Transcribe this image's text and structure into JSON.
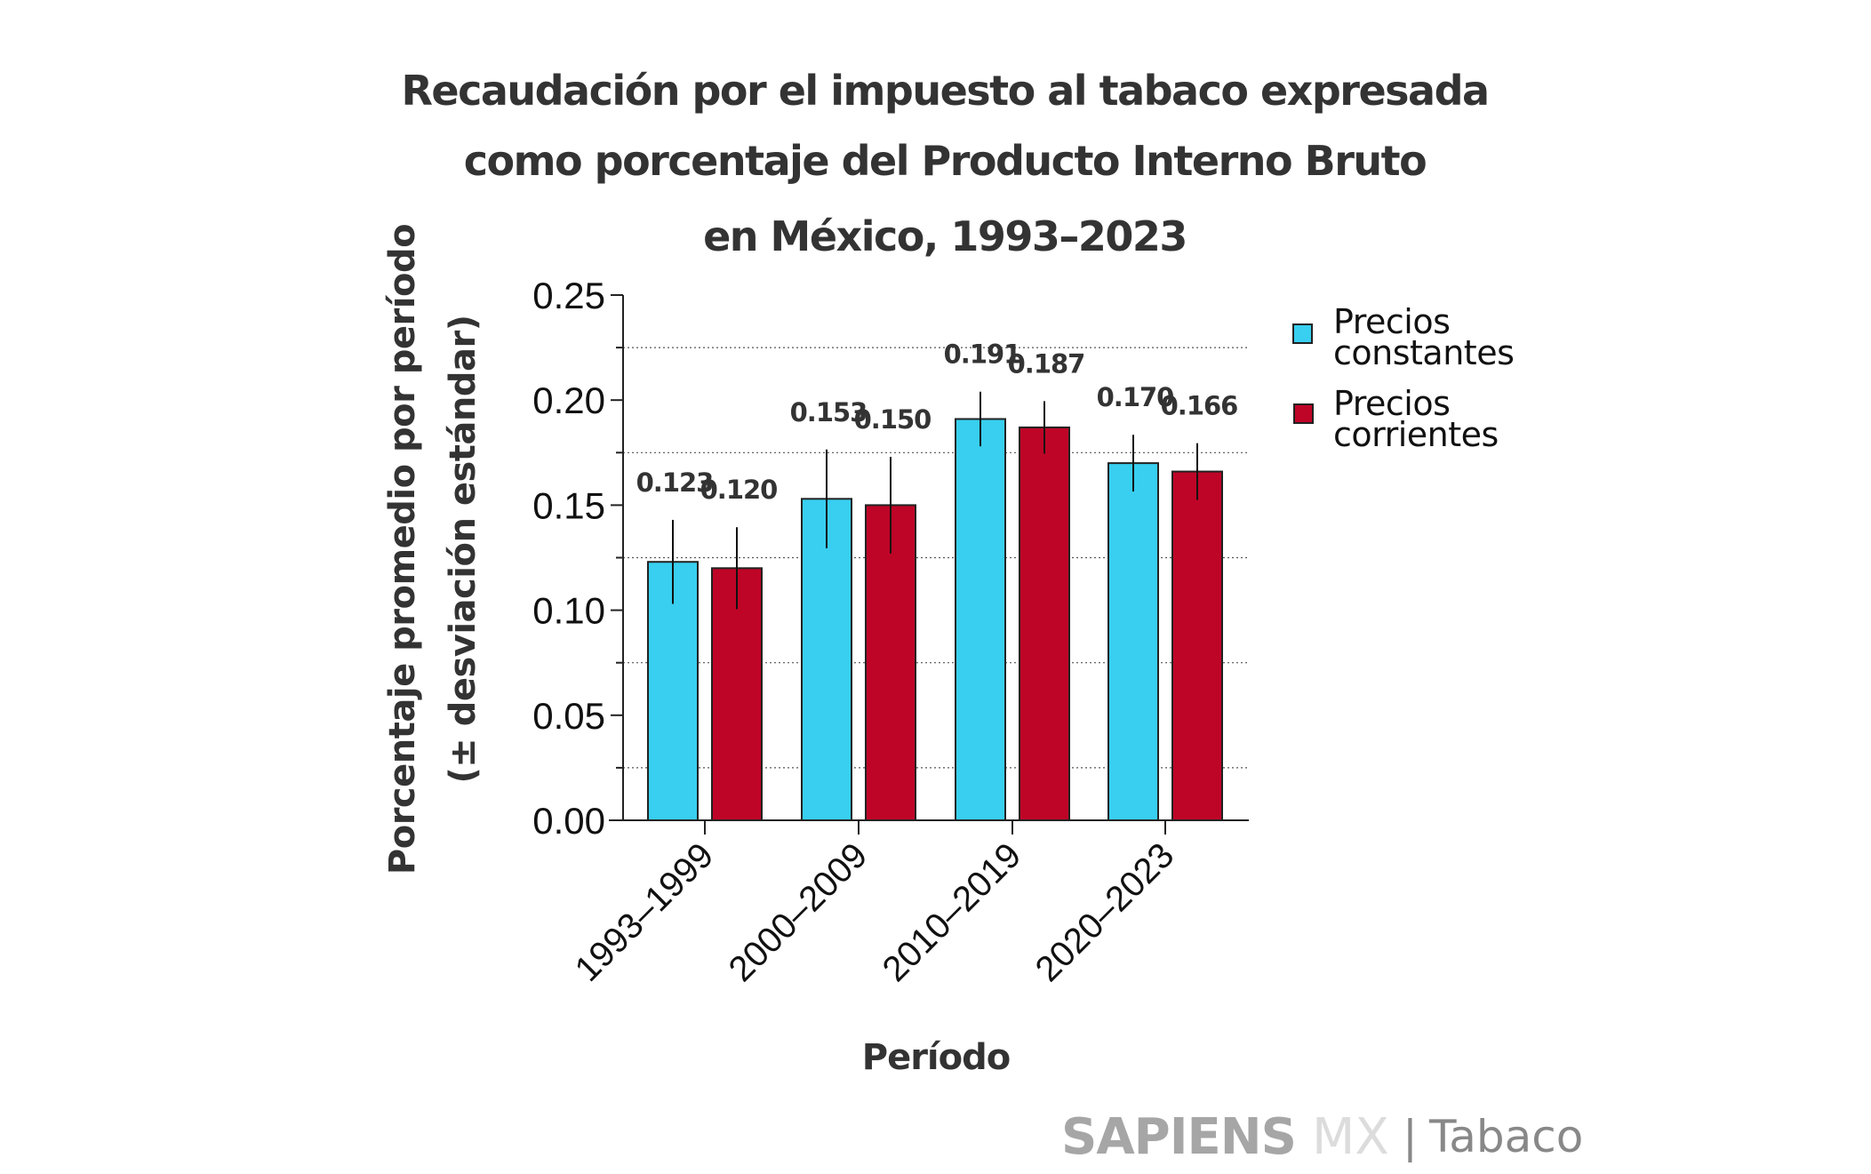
{
  "chart_data": {
    "type": "bar",
    "title": [
      "Recaudación por el impuesto al tabaco expresada",
      "como porcentaje del Producto Interno Bruto",
      "en México, 1993–2023"
    ],
    "ylabel": [
      "Porcentaje promedio por período",
      "(± desviación estándar)"
    ],
    "xlabel": "Período",
    "categories": [
      "1993–1999",
      "2000–2009",
      "2010–2019",
      "2020–2023"
    ],
    "series": [
      {
        "name": "Precios constantes",
        "legend_lines": [
          "Precios",
          "constantes"
        ],
        "color": "#38cff0",
        "values": [
          0.123,
          0.153,
          0.191,
          0.17
        ],
        "value_labels": [
          "0.123",
          "0.153",
          "0.191",
          "0.170"
        ],
        "std_dev": [
          0.02,
          0.0235,
          0.013,
          0.0135
        ]
      },
      {
        "name": "Precios corrientes",
        "legend_lines": [
          "Precios",
          "corrientes"
        ],
        "color": "#bf0527",
        "values": [
          0.12,
          0.15,
          0.187,
          0.166
        ],
        "value_labels": [
          "0.120",
          "0.150",
          "0.187",
          "0.166"
        ],
        "std_dev": [
          0.0195,
          0.023,
          0.0125,
          0.0135
        ]
      }
    ],
    "ylim": [
      0,
      0.25
    ],
    "yticks": [
      0.0,
      0.05,
      0.1,
      0.15,
      0.2,
      0.25
    ],
    "ytick_labels": [
      "0.00",
      "0.05",
      "0.10",
      "0.15",
      "0.20",
      "0.25"
    ],
    "minor_gridlines": [
      0.025,
      0.075,
      0.125,
      0.175,
      0.225
    ],
    "grid": "dotted horizontal at minor ticks",
    "legend_position": "right",
    "xtick_rotation": "-45 degrees"
  },
  "branding": {
    "name_bold": "SAPIENS",
    "name_light": "MX",
    "separator": "|",
    "section": "Tabaco"
  }
}
